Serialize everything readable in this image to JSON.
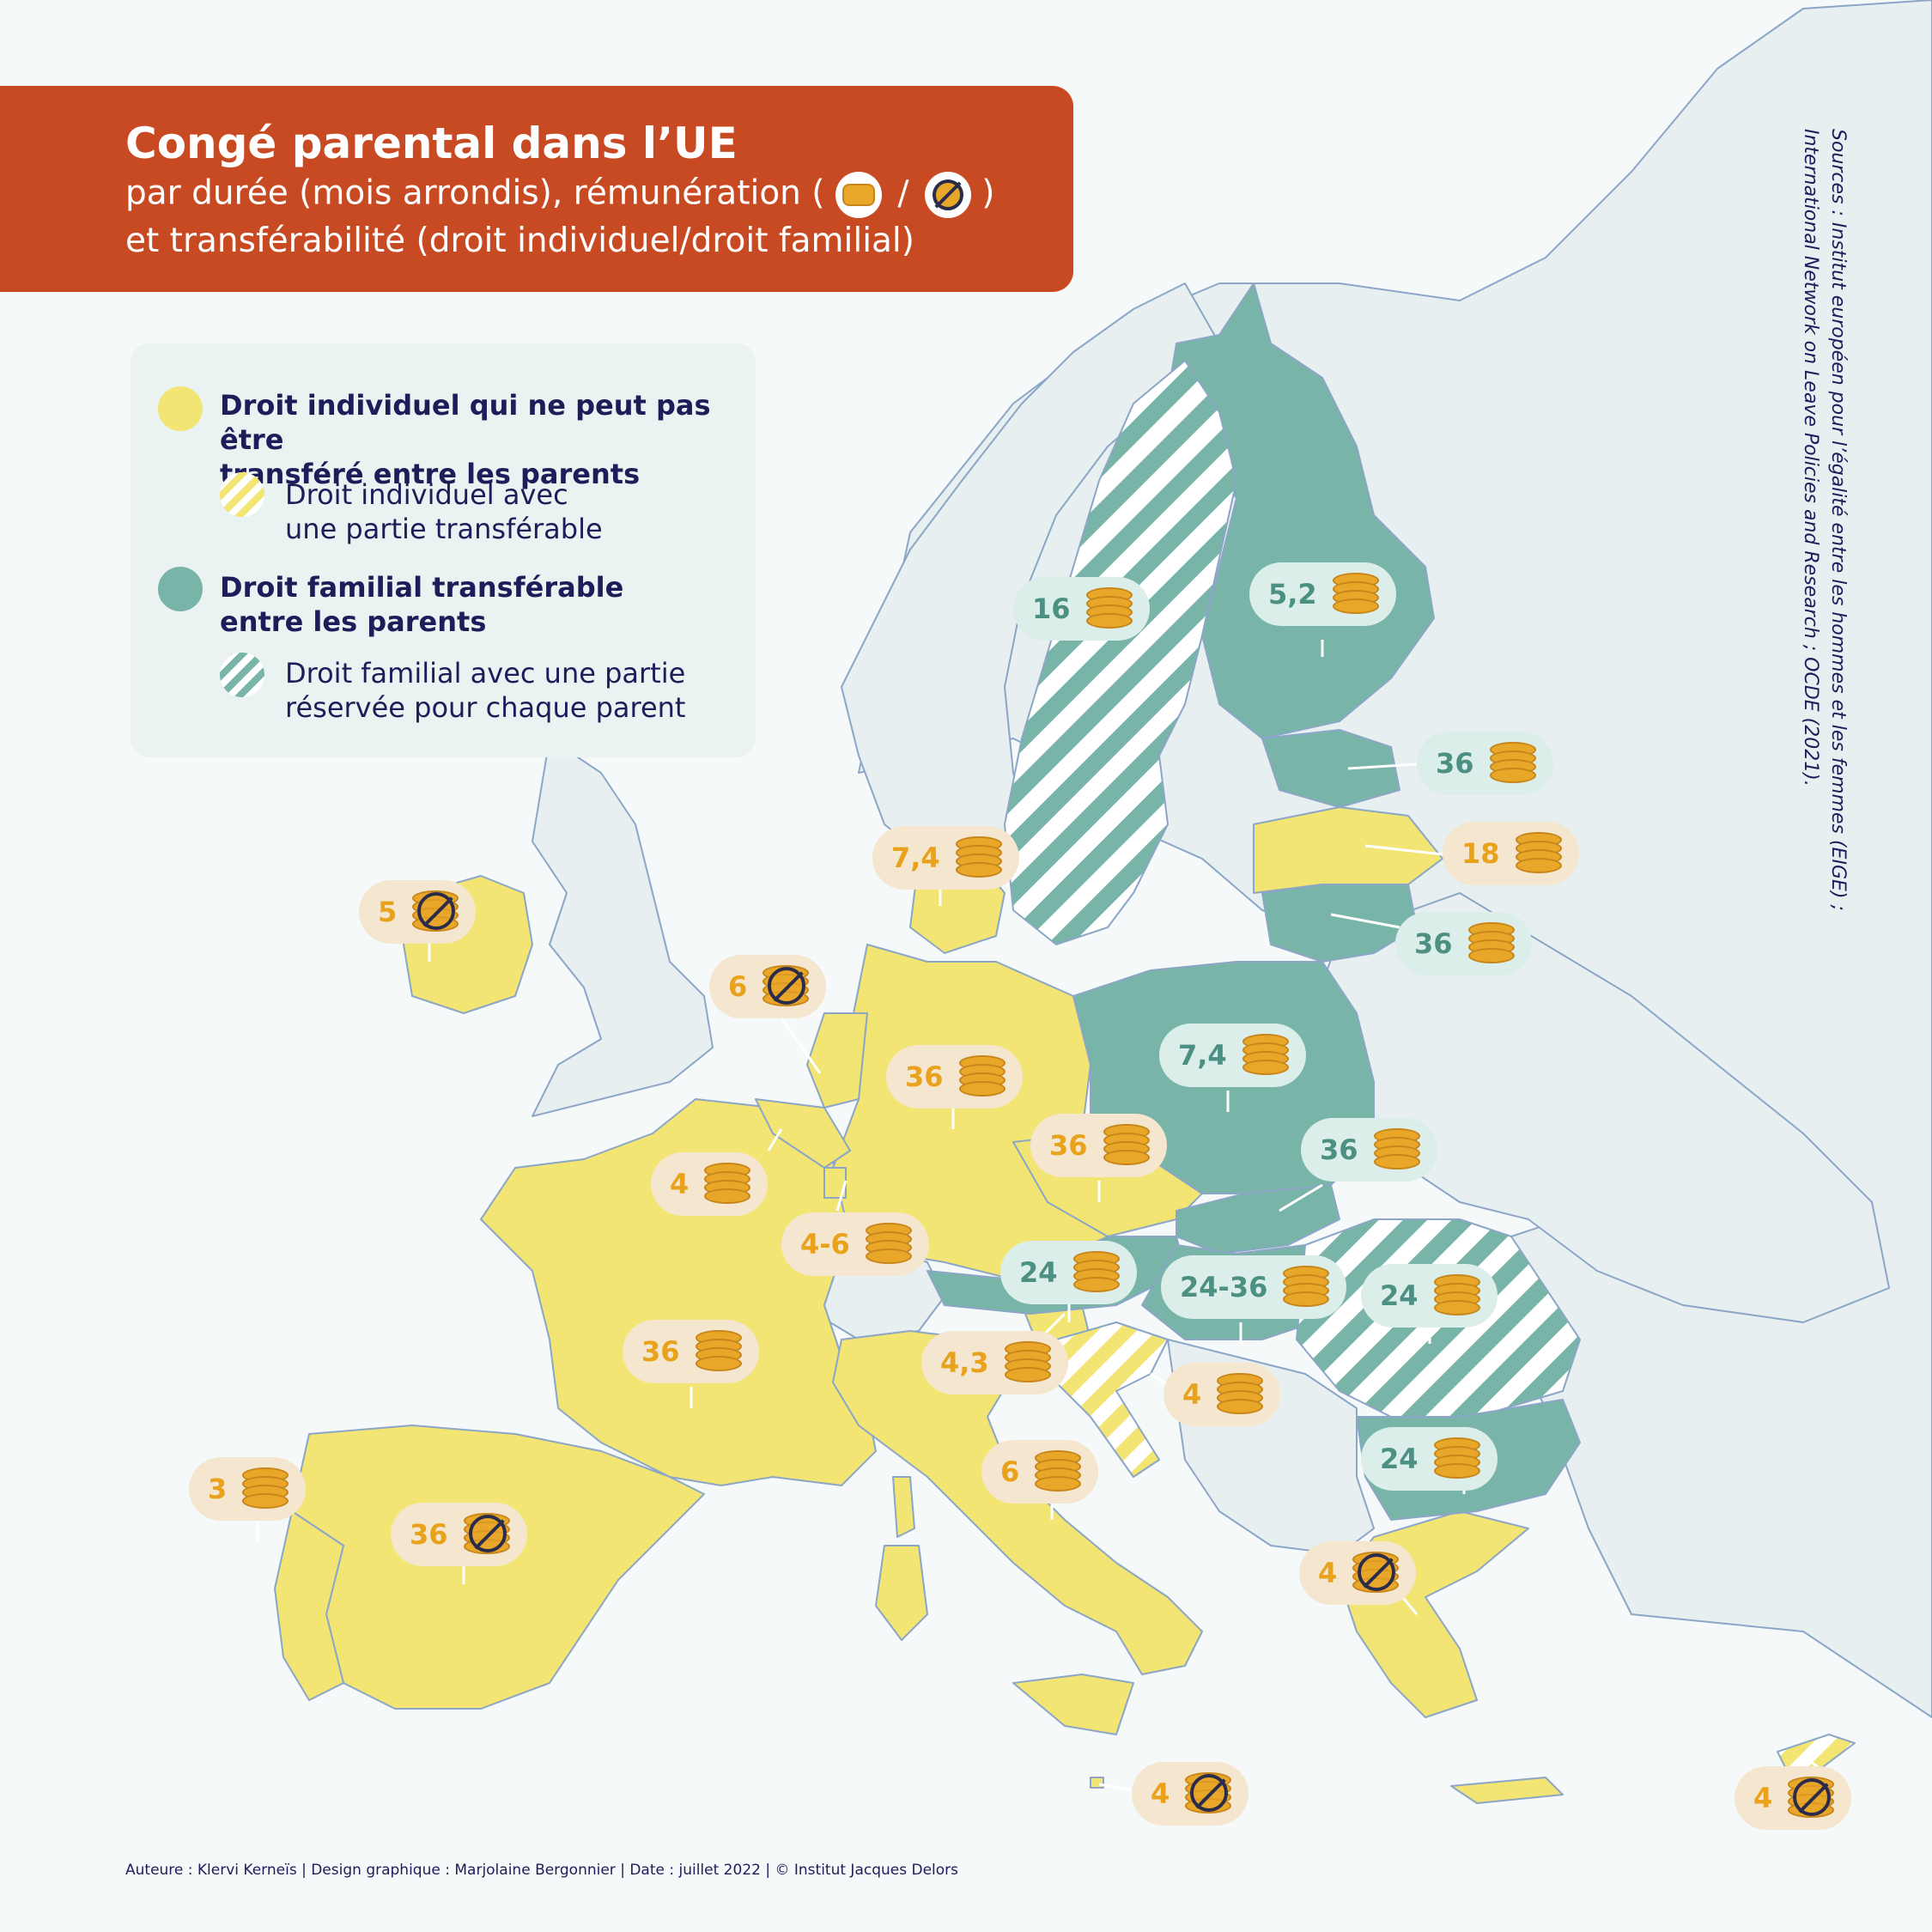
{
  "title": {
    "main": "Congé parental dans l’UE",
    "line2_before": "par durée (mois arrondis), rémunération  (",
    "line2_sep": "/",
    "line2_after": ")",
    "line3": "et transférabilité (droit individuel/droit familial)"
  },
  "legend": {
    "individual_strong_1": "Droit individuel qui ne peut pas être",
    "individual_strong_2": "transféré entre les parents",
    "individual_partial_1": "Droit individuel avec",
    "individual_partial_2": "une partie transférable",
    "family_strong_1": "Droit familial transférable",
    "family_strong_2": "entre les parents",
    "family_partial_1": "Droit familial avec une partie",
    "family_partial_2": "réservée pour chaque parent"
  },
  "sources": {
    "line1": "Sources : Institut européen pour l’égalité entre les hommes et les femmes (EIGE) ;",
    "line2": "International Network on Leave Policies and Research ; OCDE (2021)."
  },
  "footer": "Auteure : Klervi Kerneïs | Design graphique : Marjolaine Bergonnier | Date : juillet 2022  |  © Institut Jacques Delors",
  "colors": {
    "individual": "#f2e573",
    "family": "#78b5a8",
    "nonEU": "#e7eff1",
    "sea": "#f6f9fa",
    "title_bg": "#c84a23"
  },
  "badges": [
    {
      "id": "ireland",
      "value": "5",
      "type": "individual",
      "paid": false
    },
    {
      "id": "netherlands",
      "value": "6",
      "type": "individual",
      "paid": false
    },
    {
      "id": "denmark",
      "value": "7,4",
      "type": "individual",
      "paid": true
    },
    {
      "id": "sweden",
      "value": "16",
      "type": "family",
      "paid": true
    },
    {
      "id": "finland",
      "value": "5,2",
      "type": "family",
      "paid": true
    },
    {
      "id": "estonia",
      "value": "36",
      "type": "family",
      "paid": true
    },
    {
      "id": "latvia",
      "value": "18",
      "type": "individual",
      "paid": true
    },
    {
      "id": "lithuania",
      "value": "36",
      "type": "family",
      "paid": true
    },
    {
      "id": "poland",
      "value": "7,4",
      "type": "family",
      "paid": true
    },
    {
      "id": "germany",
      "value": "36",
      "type": "individual",
      "paid": true
    },
    {
      "id": "belgium",
      "value": "4",
      "type": "individual",
      "paid": true
    },
    {
      "id": "luxembourg",
      "value": "4-6",
      "type": "individual",
      "paid": true
    },
    {
      "id": "czechia",
      "value": "36",
      "type": "individual",
      "paid": true
    },
    {
      "id": "slovakia",
      "value": "36",
      "type": "family",
      "paid": true
    },
    {
      "id": "austria",
      "value": "24",
      "type": "family",
      "paid": true
    },
    {
      "id": "hungary",
      "value": "24-36",
      "type": "family",
      "paid": true
    },
    {
      "id": "romania",
      "value": "24",
      "type": "family",
      "paid": true
    },
    {
      "id": "france",
      "value": "36",
      "type": "individual",
      "paid": true
    },
    {
      "id": "slovenia",
      "value": "4,3",
      "type": "individual",
      "paid": true
    },
    {
      "id": "croatia",
      "value": "4",
      "type": "individual",
      "paid": true
    },
    {
      "id": "bulgaria",
      "value": "24",
      "type": "family",
      "paid": true
    },
    {
      "id": "italy",
      "value": "6",
      "type": "individual",
      "paid": true
    },
    {
      "id": "portugal",
      "value": "3",
      "type": "individual",
      "paid": true
    },
    {
      "id": "spain",
      "value": "36",
      "type": "individual",
      "paid": false
    },
    {
      "id": "greece",
      "value": "4",
      "type": "individual",
      "paid": false
    },
    {
      "id": "malta",
      "value": "4",
      "type": "individual",
      "paid": false
    },
    {
      "id": "cyprus",
      "value": "4",
      "type": "individual",
      "paid": false
    }
  ]
}
